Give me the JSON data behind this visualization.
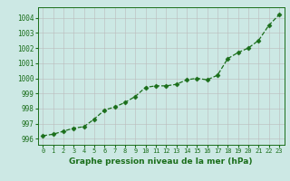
{
  "x": [
    0,
    1,
    2,
    3,
    4,
    5,
    6,
    7,
    8,
    9,
    10,
    11,
    12,
    13,
    14,
    15,
    16,
    17,
    18,
    19,
    20,
    21,
    22,
    23
  ],
  "y": [
    996.2,
    996.3,
    996.5,
    996.7,
    996.8,
    997.3,
    997.9,
    998.1,
    998.4,
    998.8,
    999.4,
    999.5,
    999.5,
    999.6,
    999.9,
    1000.0,
    999.9,
    1000.2,
    1001.3,
    1001.7,
    1002.0,
    1002.5,
    1003.5,
    1004.2
  ],
  "line_color": "#1a6e1a",
  "marker": "D",
  "marker_size": 2.5,
  "bg_color": "#cce8e4",
  "grid_color": "#bbbbbb",
  "ylabel_ticks": [
    996,
    997,
    998,
    999,
    1000,
    1001,
    1002,
    1003,
    1004
  ],
  "xlabel_ticks": [
    0,
    1,
    2,
    3,
    4,
    5,
    6,
    7,
    8,
    9,
    10,
    11,
    12,
    13,
    14,
    15,
    16,
    17,
    18,
    19,
    20,
    21,
    22,
    23
  ],
  "xlabel": "Graphe pression niveau de la mer (hPa)",
  "ylim": [
    995.6,
    1004.7
  ],
  "xlim": [
    -0.5,
    23.5
  ]
}
